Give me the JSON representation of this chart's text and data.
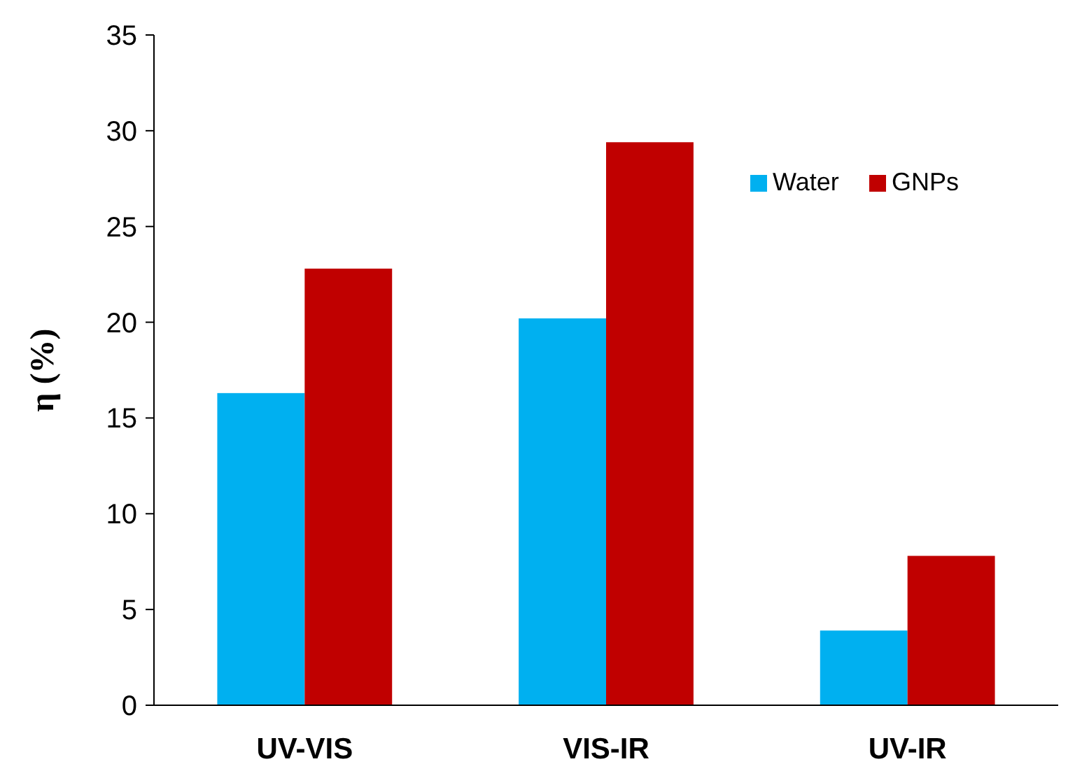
{
  "chart_data": {
    "type": "bar",
    "ylabel": "η (%)",
    "categories": [
      "UV-VIS",
      "VIS-IR",
      "UV-IR"
    ],
    "series": [
      {
        "name": "Water",
        "color": "#00b0f0",
        "values": [
          16.3,
          20.2,
          3.9
        ]
      },
      {
        "name": "GNPs",
        "color": "#c00000",
        "values": [
          22.8,
          29.4,
          7.8
        ]
      }
    ],
    "ylim": [
      0,
      35
    ],
    "yticks": [
      0,
      5,
      10,
      15,
      20,
      25,
      30,
      35
    ],
    "grid": false,
    "legend": "top right"
  }
}
